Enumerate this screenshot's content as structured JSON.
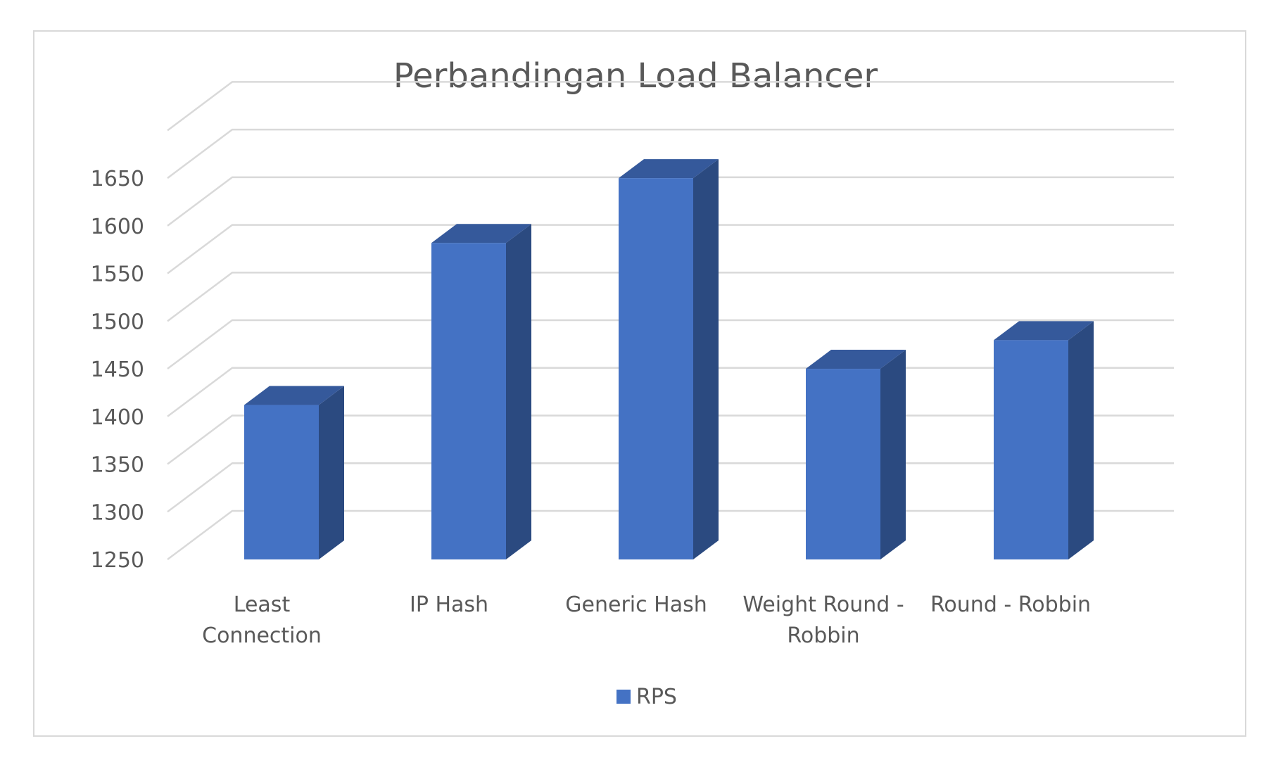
{
  "chart_data": {
    "type": "bar",
    "title": "Perbandingan Load Balancer",
    "categories": [
      [
        "Least",
        "Connection"
      ],
      [
        "IP Hash"
      ],
      [
        "Generic Hash"
      ],
      [
        "Weight Round -",
        "Robbin"
      ],
      [
        "Round - Robbin"
      ]
    ],
    "series": [
      {
        "name": "RPS",
        "values": [
          1412,
          1582,
          1650,
          1450,
          1480
        ]
      }
    ],
    "yticks": [
      1250,
      1300,
      1350,
      1400,
      1450,
      1500,
      1550,
      1600,
      1650
    ],
    "ylim": [
      1250,
      1700
    ],
    "xlabel": "",
    "ylabel": "",
    "grid": true,
    "legend_position": "bottom",
    "style": "3d-column",
    "colors": {
      "bar_front": "#4472C4",
      "bar_side": "#2B4A80",
      "bar_top": "#35599B",
      "grid": "#D9D9D9",
      "text": "#595959"
    }
  }
}
